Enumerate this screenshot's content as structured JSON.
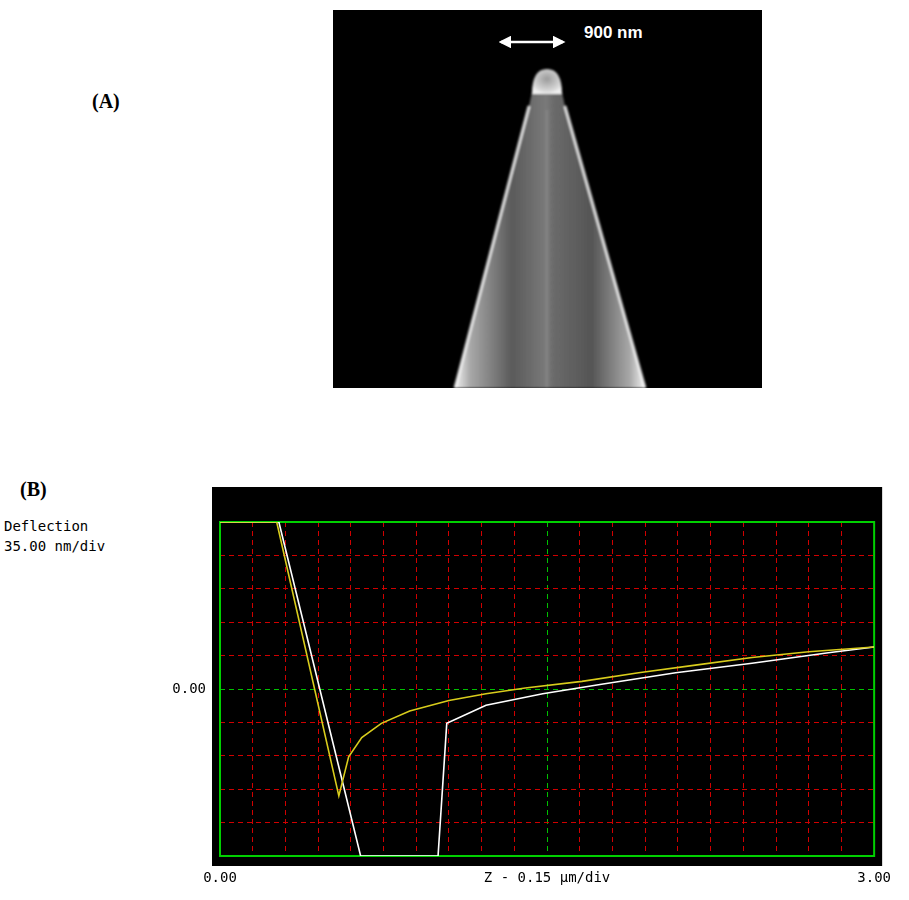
{
  "panel_a": {
    "label": "(A)",
    "scale_text": "900 nm"
  },
  "panel_b": {
    "label": "(B)"
  },
  "chart_data": {
    "type": "line",
    "x_label": "Z - 0.15 µm/div",
    "y_label": "Deflection",
    "y_units": "35.00 nm/div",
    "xlim": [
      0,
      3
    ],
    "ylim": [
      -175,
      175
    ],
    "xticks": [
      {
        "value": 0,
        "label": "0.00"
      },
      {
        "value": 3,
        "label": "3.00"
      }
    ],
    "yticks": [
      {
        "value": 0,
        "label": "0.00"
      }
    ],
    "x_grid_step": 0.15,
    "y_grid_step": 35,
    "grid": true,
    "series": [
      {
        "color": "#d8cc1c",
        "x": [
          0,
          0.26,
          0.545,
          0.59,
          0.65,
          0.74,
          0.87,
          1.05,
          1.22,
          1.4,
          1.66,
          1.92,
          2.18,
          2.44,
          2.7,
          3.0
        ],
        "values": [
          175,
          175,
          -112,
          -71,
          -51,
          -36,
          -23,
          -12,
          -5,
          1,
          8,
          17,
          25,
          33,
          39,
          44
        ]
      },
      {
        "color": "#ffffff",
        "x": [
          0,
          0.27,
          0.645,
          1.0,
          1.04,
          1.22,
          1.48,
          1.75,
          2.09,
          2.44,
          2.79,
          3.0
        ],
        "values": [
          175,
          175,
          -175,
          -175,
          -36,
          -17,
          -5,
          5,
          17,
          27,
          38,
          44
        ]
      }
    ]
  }
}
